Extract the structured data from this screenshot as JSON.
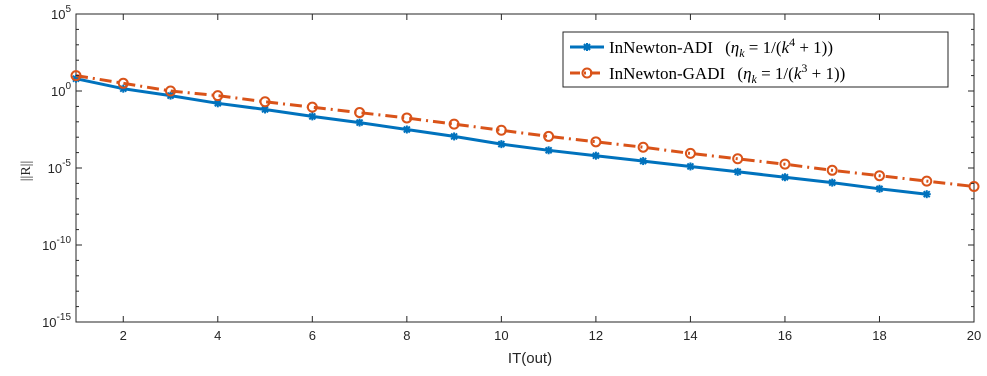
{
  "chart_data": {
    "type": "line",
    "xlabel": "IT(out)",
    "ylabel": "||R||",
    "xlim": [
      1,
      20
    ],
    "ylim_exponents": [
      -15,
      5
    ],
    "yscale": "log",
    "grid": false,
    "legend_position": "top-right",
    "x_ticks": [
      "2",
      "4",
      "6",
      "8",
      "10",
      "12",
      "14",
      "16",
      "18",
      "20"
    ],
    "y_ticks": [
      {
        "base": "10",
        "exp": "5"
      },
      {
        "base": "10",
        "exp": "0"
      },
      {
        "base": "10",
        "exp": "-5"
      },
      {
        "base": "10",
        "exp": "-10"
      },
      {
        "base": "10",
        "exp": "-15"
      }
    ],
    "series": [
      {
        "name": "InNewton-ADI (η_k = 1/(k^4 + 1))",
        "legend_main": "InNewton-ADI",
        "legend_math": "(ηk = 1/(k4 + 1))",
        "color": "#0072BD",
        "line_style": "solid",
        "marker": "asterisk",
        "x": [
          1,
          2,
          3,
          4,
          5,
          6,
          7,
          8,
          9,
          10,
          11,
          12,
          13,
          14,
          15,
          16,
          17,
          18,
          19
        ],
        "log10_y": [
          0.8,
          0.15,
          -0.3,
          -0.8,
          -1.2,
          -1.65,
          -2.05,
          -2.5,
          -2.95,
          -3.45,
          -3.85,
          -4.2,
          -4.55,
          -4.9,
          -5.25,
          -5.6,
          -5.95,
          -6.35,
          -6.7
        ]
      },
      {
        "name": "InNewton-GADI (η_k = 1/(k^3 + 1))",
        "legend_main": "InNewton-GADI",
        "legend_math": "(ηk = 1/(k3 + 1))",
        "color": "#D95319",
        "line_style": "dash-dot",
        "marker": "circle",
        "x": [
          1,
          2,
          3,
          4,
          5,
          6,
          7,
          8,
          9,
          10,
          11,
          12,
          13,
          14,
          15,
          16,
          17,
          18,
          19,
          20
        ],
        "log10_y": [
          1.0,
          0.5,
          0.0,
          -0.3,
          -0.7,
          -1.05,
          -1.4,
          -1.75,
          -2.15,
          -2.55,
          -2.95,
          -3.3,
          -3.65,
          -4.05,
          -4.4,
          -4.75,
          -5.15,
          -5.5,
          -5.85,
          -6.2
        ]
      }
    ]
  }
}
